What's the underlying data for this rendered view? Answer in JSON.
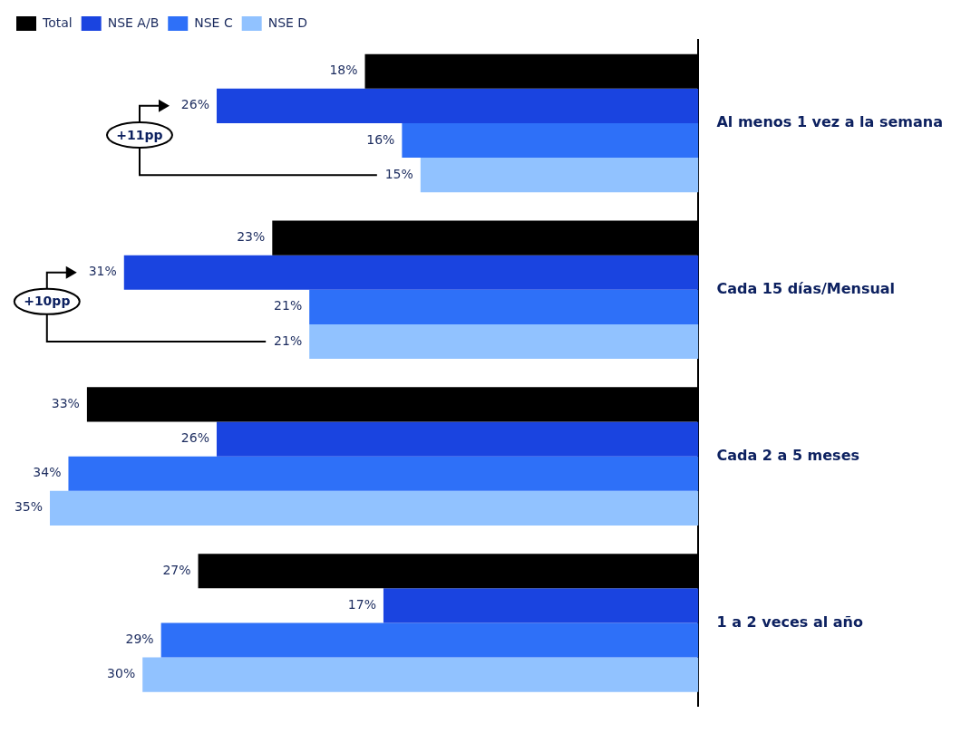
{
  "chart_data": {
    "type": "bar",
    "orientation": "horizontal",
    "categories": [
      "Al menos 1 vez a la semana",
      "Cada 15 días/Mensual",
      "Cada 2 a 5 meses",
      "1 a 2 veces al año"
    ],
    "series": [
      {
        "name": "Total",
        "color": "#000000",
        "values": [
          18,
          23,
          33,
          27
        ],
        "value_labels": [
          "18%",
          "23%",
          "33%",
          "27%"
        ]
      },
      {
        "name": "NSE A/B",
        "color": "#1a44e0",
        "values": [
          26,
          31,
          26,
          17
        ],
        "value_labels": [
          "26%",
          "31%",
          "26%",
          "17%"
        ]
      },
      {
        "name": "NSE C",
        "color": "#2e70f8",
        "values": [
          16,
          21,
          34,
          29
        ],
        "value_labels": [
          "16%",
          "21%",
          "34%",
          "29%"
        ]
      },
      {
        "name": "NSE D",
        "color": "#91c2ff",
        "values": [
          15,
          21,
          35,
          30
        ],
        "value_labels": [
          "15%",
          "21%",
          "35%",
          "30%"
        ]
      }
    ],
    "legend": "top left",
    "annotations": [
      "+11pp",
      "+10pp"
    ]
  }
}
